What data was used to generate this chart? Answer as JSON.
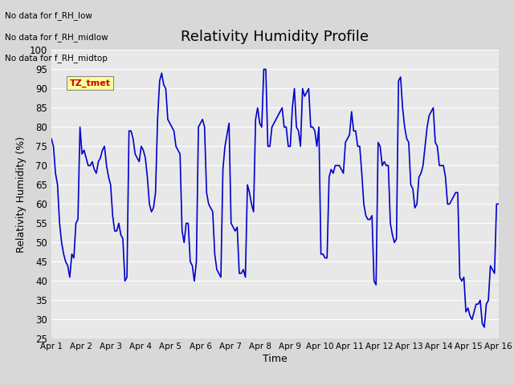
{
  "title": "Relativity Humidity Profile",
  "xlabel": "Time",
  "ylabel": "Relativity Humidity (%)",
  "ylim": [
    25,
    100
  ],
  "yticks": [
    25,
    30,
    35,
    40,
    45,
    50,
    55,
    60,
    65,
    70,
    75,
    80,
    85,
    90,
    95,
    100
  ],
  "line_color": "#0000cc",
  "line_width": 1.2,
  "bg_color": "#d8d8d8",
  "plot_bg_color": "#e8e8e8",
  "no_data_texts": [
    "No data for f_RH_low",
    "No data for f_RH_midlow",
    "No data for f_RH_midtop"
  ],
  "legend_color": "#0000cc",
  "tz_label": "TZ_tmet",
  "tz_bg": "#ffff99",
  "tz_fg": "#cc0000",
  "x_tick_labels": [
    "Apr 1",
    "Apr 2",
    "Apr 3",
    "Apr 4",
    "Apr 5",
    "Apr 6",
    "Apr 7",
    "Apr 8",
    "Apr 9",
    "Apr 10",
    "Apr 11",
    "Apr 12",
    "Apr 13",
    "Apr 14",
    "Apr 15",
    "Apr 16"
  ],
  "humidity_values": [
    77,
    75,
    68,
    65,
    55,
    50,
    47,
    45,
    44,
    41,
    47,
    46,
    55,
    56,
    80,
    73,
    74,
    72,
    70,
    70,
    71,
    69,
    68,
    71,
    72,
    74,
    75,
    70,
    67,
    65,
    57,
    53,
    53,
    55,
    52,
    51,
    40,
    41,
    79,
    79,
    77,
    73,
    72,
    71,
    75,
    74,
    72,
    67,
    60,
    58,
    59,
    63,
    82,
    92,
    94,
    91,
    90,
    82,
    81,
    80,
    79,
    75,
    74,
    73,
    53,
    50,
    55,
    55,
    45,
    44,
    40,
    45,
    80,
    81,
    82,
    80,
    63,
    60,
    59,
    58,
    47,
    43,
    42,
    41,
    69,
    75,
    78,
    81,
    55,
    54,
    53,
    54,
    42,
    42,
    43,
    41,
    65,
    63,
    60,
    58,
    82,
    85,
    81,
    80,
    95,
    95,
    75,
    75,
    80,
    81,
    82,
    83,
    84,
    85,
    80,
    80,
    75,
    75,
    85,
    90,
    80,
    79,
    75,
    90,
    88,
    89,
    90,
    80,
    80,
    79,
    75,
    80,
    47,
    47,
    46,
    46,
    67,
    69,
    68,
    70,
    70,
    70,
    69,
    68,
    76,
    77,
    78,
    84,
    79,
    79,
    75,
    75,
    68,
    60,
    57,
    56,
    56,
    57,
    40,
    39,
    76,
    75,
    70,
    71,
    70,
    70,
    55,
    52,
    50,
    51,
    92,
    93,
    85,
    80,
    77,
    76,
    65,
    64,
    59,
    60,
    67,
    68,
    70,
    75,
    80,
    83,
    84,
    85,
    76,
    75,
    70,
    70,
    70,
    67,
    60,
    60,
    61,
    62,
    63,
    63,
    41,
    40,
    41,
    32,
    33,
    31,
    30,
    32,
    34,
    34,
    35,
    29,
    28,
    34,
    35,
    44,
    43,
    42,
    60,
    60
  ]
}
